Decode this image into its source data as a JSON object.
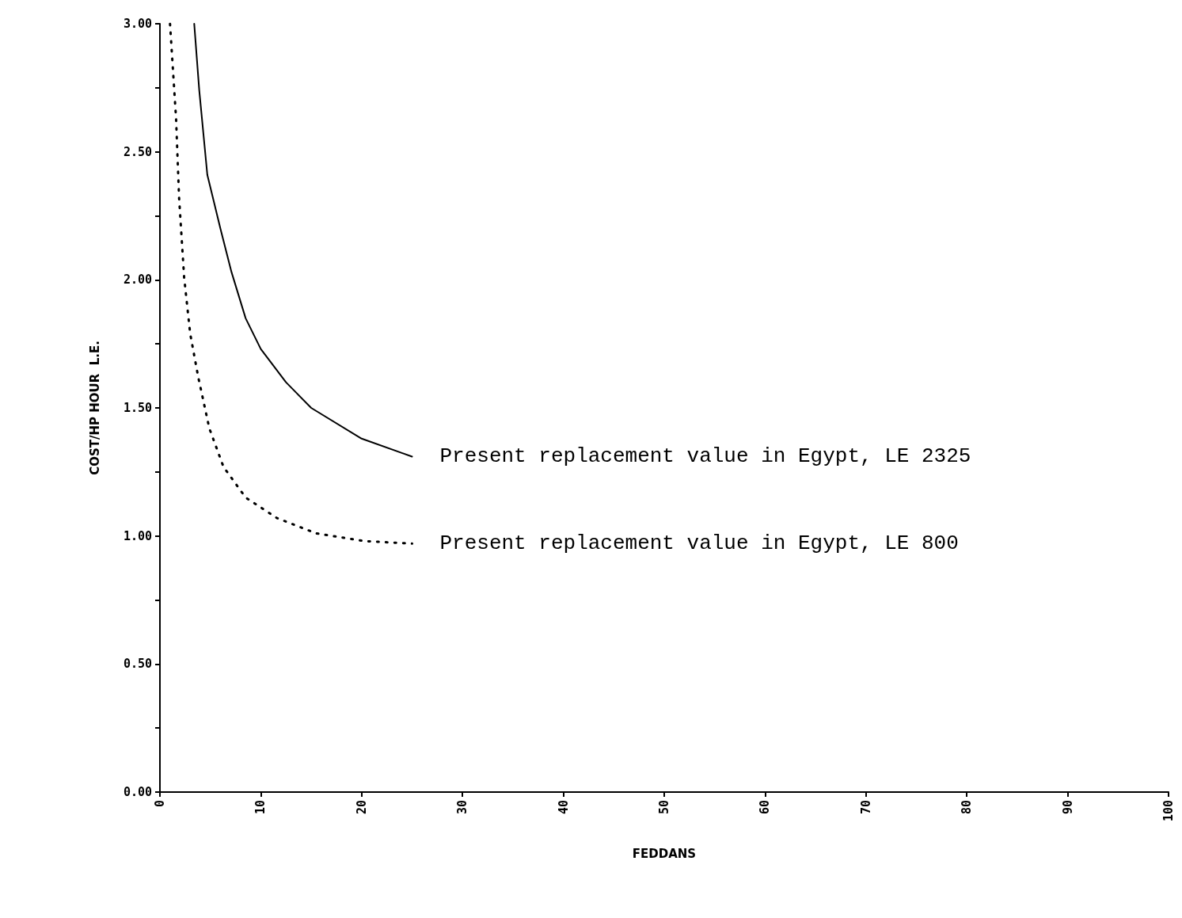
{
  "chart_data": {
    "type": "line",
    "xlabel": "FEDDANS",
    "ylabel": "COST/HP HOUR  L.E.",
    "xlim": [
      0,
      100
    ],
    "ylim": [
      0,
      3
    ],
    "xticks": [
      0,
      10,
      20,
      30,
      40,
      50,
      60,
      70,
      80,
      90,
      100
    ],
    "yticks": [
      {
        "value": 0,
        "label": "0.00"
      },
      {
        "value": 0.25,
        "label": null
      },
      {
        "value": 0.5,
        "label": "0.50"
      },
      {
        "value": 0.75,
        "label": null
      },
      {
        "value": 1,
        "label": "1.00"
      },
      {
        "value": 1.25,
        "label": null
      },
      {
        "value": 1.5,
        "label": "1.50"
      },
      {
        "value": 1.75,
        "label": null
      },
      {
        "value": 2,
        "label": "2.00"
      },
      {
        "value": 2.25,
        "label": null
      },
      {
        "value": 2.5,
        "label": "2.50"
      },
      {
        "value": 2.75,
        "label": null
      },
      {
        "value": 3,
        "label": "3.00"
      }
    ],
    "grid": false,
    "legend": false,
    "marker": "none",
    "series": [
      {
        "name": "Present replacement value in Egypt, LE 2325",
        "color": "#000000",
        "line_style": "solid",
        "x": [
          3.4,
          3.9,
          4.7,
          6,
          7.1,
          8.5,
          10,
          12.5,
          15,
          20,
          25
        ],
        "values": [
          3.0,
          2.74,
          2.41,
          2.2,
          2.03,
          1.85,
          1.73,
          1.6,
          1.5,
          1.38,
          1.31
        ]
      },
      {
        "name": "Present replacement value in Egypt, LE 800",
        "color": "#000000",
        "line_style": "dotted",
        "x": [
          1.0,
          1.6,
          1.9,
          2.4,
          3.0,
          3.8,
          4.9,
          6.3,
          8.5,
          11.6,
          15.5,
          20.3,
          25
        ],
        "values": [
          3.0,
          2.63,
          2.32,
          2.01,
          1.79,
          1.62,
          1.42,
          1.27,
          1.15,
          1.07,
          1.01,
          0.98,
          0.97
        ]
      }
    ]
  }
}
